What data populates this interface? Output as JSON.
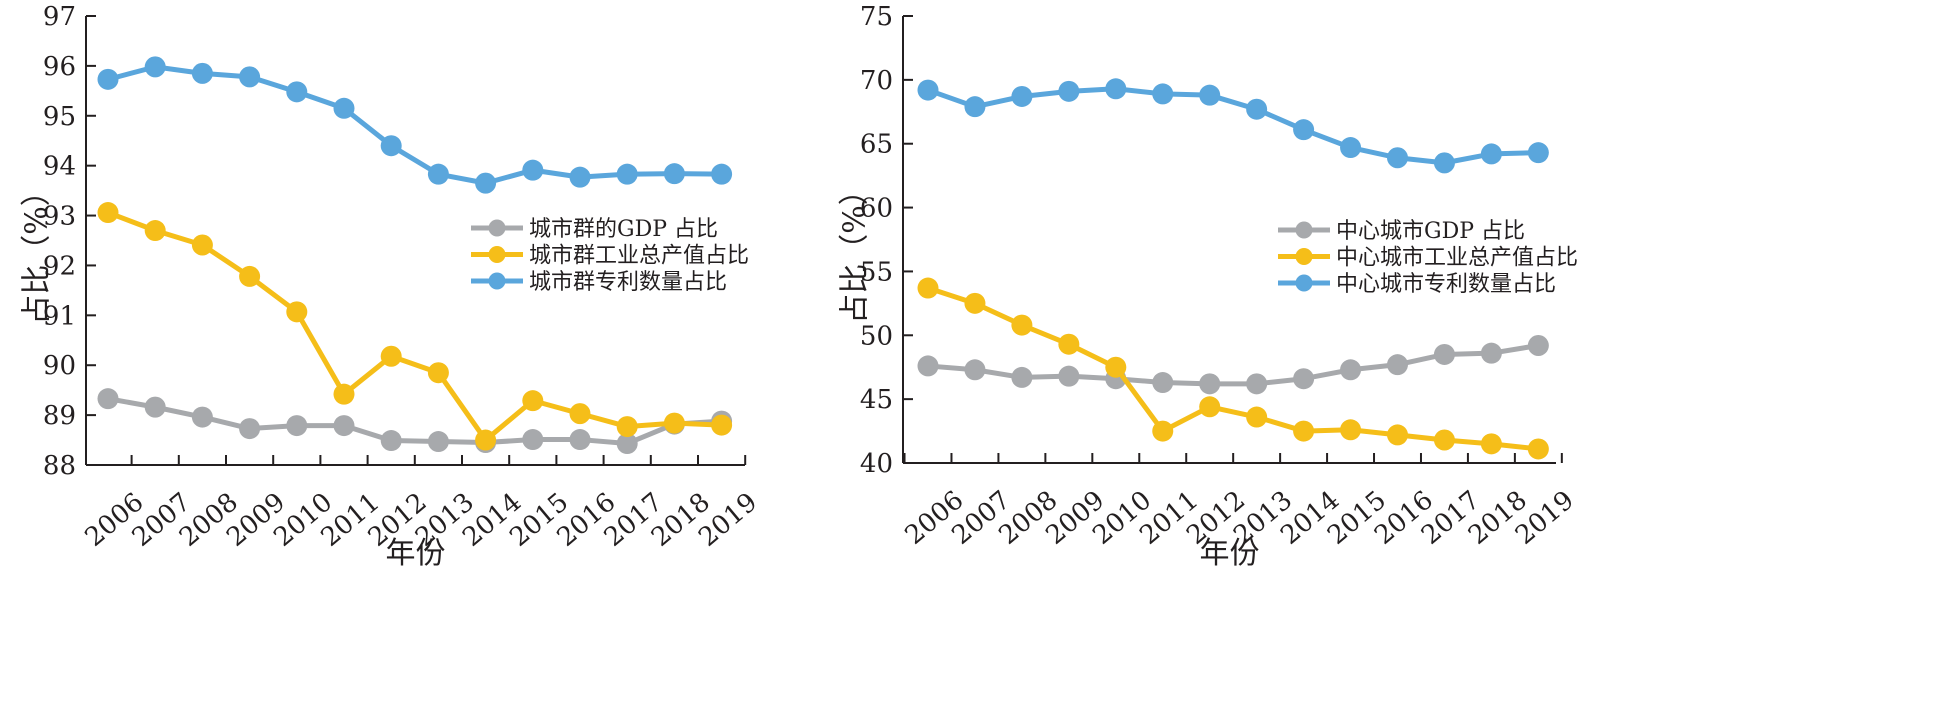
{
  "chart_data": [
    {
      "type": "line",
      "title": "",
      "xlabel": "年份",
      "ylabel": "占比（%）",
      "ylim": [
        88,
        97
      ],
      "yticks": [
        "88",
        "89",
        "90",
        "91",
        "92",
        "93",
        "94",
        "95",
        "96",
        "97"
      ],
      "categories": [
        "2006",
        "2007",
        "2008",
        "2009",
        "2010",
        "2011",
        "2012",
        "2013",
        "2014",
        "2015",
        "2016",
        "2017",
        "2018",
        "2019"
      ],
      "legend_position": "center-right",
      "series": [
        {
          "name": "城市群的GDP 占比",
          "color": "#a7a9ac",
          "values": [
            89.33,
            89.16,
            88.96,
            88.73,
            88.79,
            88.79,
            88.49,
            88.47,
            88.45,
            88.51,
            88.51,
            88.43,
            88.82,
            88.88
          ]
        },
        {
          "name": "城市群工业总产值占比",
          "color": "#f5be19",
          "values": [
            93.06,
            92.7,
            92.41,
            91.78,
            91.07,
            89.42,
            90.18,
            89.85,
            88.5,
            89.29,
            89.03,
            88.77,
            88.84,
            88.8
          ]
        },
        {
          "name": "城市群专利数量占比",
          "color": "#5aa6dc",
          "values": [
            95.73,
            95.98,
            95.85,
            95.78,
            95.48,
            95.15,
            94.4,
            93.83,
            93.65,
            93.91,
            93.77,
            93.83,
            93.84,
            93.83
          ]
        }
      ]
    },
    {
      "type": "line",
      "title": "",
      "xlabel": "年份",
      "ylabel": "占比（%）",
      "ylim": [
        40,
        75
      ],
      "yticks": [
        "40",
        "45",
        "50",
        "55",
        "60",
        "65",
        "70",
        "75"
      ],
      "categories": [
        "2006",
        "2007",
        "2008",
        "2009",
        "2010",
        "2011",
        "2012",
        "2013",
        "2014",
        "2015",
        "2016",
        "2017",
        "2018",
        "2019"
      ],
      "legend_position": "center-right",
      "series": [
        {
          "name": "中心城市GDP 占比",
          "color": "#a7a9ac",
          "values": [
            47.6,
            47.3,
            46.7,
            46.8,
            46.6,
            46.3,
            46.2,
            46.2,
            46.6,
            47.3,
            47.7,
            48.5,
            48.6,
            49.2
          ]
        },
        {
          "name": "中心城市工业总产值占比",
          "color": "#f5be19",
          "values": [
            53.7,
            52.5,
            50.8,
            49.3,
            47.5,
            42.5,
            44.4,
            43.6,
            42.5,
            42.6,
            42.2,
            41.8,
            41.5,
            41.1
          ]
        },
        {
          "name": "中心城市专利数量占比",
          "color": "#5aa6dc",
          "values": [
            69.2,
            67.9,
            68.7,
            69.1,
            69.3,
            68.9,
            68.8,
            67.7,
            66.1,
            64.7,
            63.9,
            63.5,
            64.2,
            64.3
          ]
        }
      ]
    }
  ]
}
